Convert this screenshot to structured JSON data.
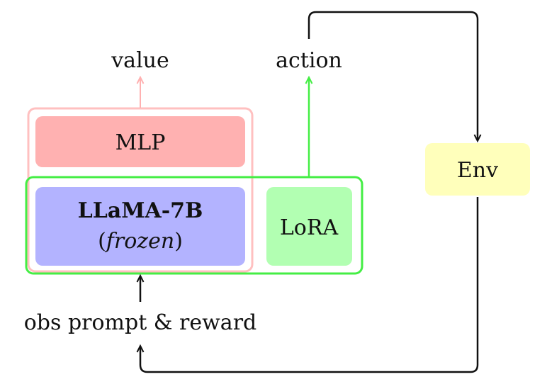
{
  "labels": {
    "value": "value",
    "action": "action",
    "mlp": "MLP",
    "llama_title": "LLaMA-7B",
    "llama_sub_open": "(",
    "llama_sub": "frozen",
    "llama_sub_close": ")",
    "lora": "LoRA",
    "env": "Env",
    "input": "obs prompt & reward"
  },
  "colors": {
    "value_head": "#ffb1b1",
    "value_frame": "#ffc0c0",
    "llama": "#b3b3ff",
    "lora": "#b2ffb2",
    "trainable_frame": "#44ee44",
    "env": "#ffffbb",
    "arrows": "#111111"
  }
}
